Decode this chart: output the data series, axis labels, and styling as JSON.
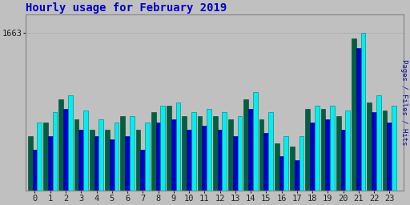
{
  "title": "Hourly usage for February 2019",
  "ylabel": "Pages / Files / Hits",
  "hours": [
    0,
    1,
    2,
    3,
    4,
    5,
    6,
    7,
    8,
    9,
    10,
    11,
    12,
    13,
    14,
    15,
    16,
    17,
    18,
    19,
    20,
    21,
    22,
    23
  ],
  "hits": [
    1530,
    1545,
    1570,
    1548,
    1535,
    1530,
    1540,
    1530,
    1555,
    1560,
    1545,
    1550,
    1545,
    1540,
    1575,
    1545,
    1510,
    1510,
    1555,
    1555,
    1548,
    1663,
    1570,
    1555
  ],
  "files": [
    1490,
    1510,
    1550,
    1520,
    1510,
    1505,
    1510,
    1490,
    1530,
    1535,
    1520,
    1525,
    1520,
    1510,
    1550,
    1515,
    1480,
    1475,
    1530,
    1535,
    1520,
    1640,
    1545,
    1530
  ],
  "pages": [
    1510,
    1530,
    1565,
    1535,
    1520,
    1520,
    1540,
    1520,
    1545,
    1555,
    1540,
    1540,
    1540,
    1535,
    1565,
    1535,
    1500,
    1495,
    1550,
    1550,
    1540,
    1655,
    1560,
    1548
  ],
  "hits_color": "#00eeee",
  "files_color": "#0000cc",
  "pages_color": "#006040",
  "bg_color": "#c0c0c0",
  "plot_bg": "#c0c0c0",
  "title_color": "#0000cc",
  "ylabel_color": "#0000aa",
  "ytick_label": "1663",
  "ylim_min": 1430,
  "ylim_max": 1690,
  "bar_width": 0.3,
  "title_fontsize": 10,
  "tick_fontsize": 7.5
}
